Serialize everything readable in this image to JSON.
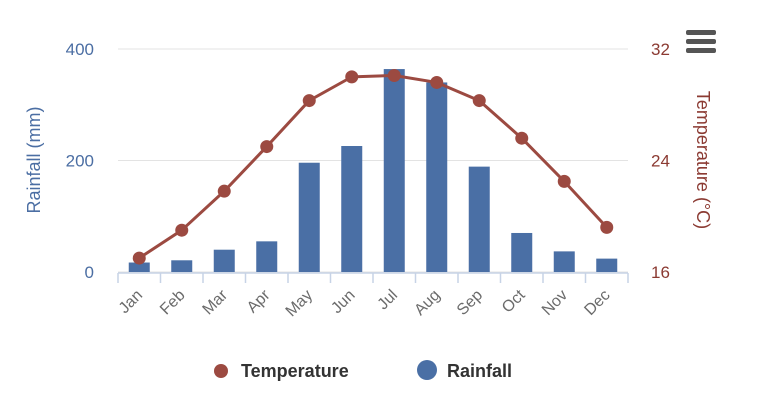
{
  "chart_data": {
    "type": "bar",
    "categories": [
      "Jan",
      "Feb",
      "Mar",
      "Apr",
      "May",
      "Jun",
      "Jul",
      "Aug",
      "Sep",
      "Oct",
      "Nov",
      "Dec"
    ],
    "series": [
      {
        "name": "Rainfall",
        "type": "bar",
        "axis": "left",
        "color": "#4a6fa5",
        "values": [
          17,
          21,
          40,
          55,
          196,
          226,
          364,
          340,
          189,
          70,
          37,
          24
        ]
      },
      {
        "name": "Temperature",
        "type": "line",
        "axis": "right",
        "color": "#9c4a41",
        "values": [
          17.0,
          19.0,
          21.8,
          25.0,
          28.3,
          30.0,
          30.1,
          29.6,
          28.3,
          25.6,
          22.5,
          19.2
        ]
      }
    ],
    "left_axis": {
      "label": "Rainfall (mm)",
      "ylim": [
        0,
        400
      ],
      "ticks": [
        "0",
        "200",
        "400"
      ]
    },
    "right_axis": {
      "label": "Temperature (°C)",
      "ylim": [
        16,
        32
      ],
      "ticks": [
        "16",
        "24",
        "32"
      ]
    },
    "legend": {
      "position": "bottom",
      "items": [
        "Temperature",
        "Rainfall"
      ]
    },
    "grid": true
  },
  "menu": {
    "icon": "hamburger-menu-icon"
  }
}
